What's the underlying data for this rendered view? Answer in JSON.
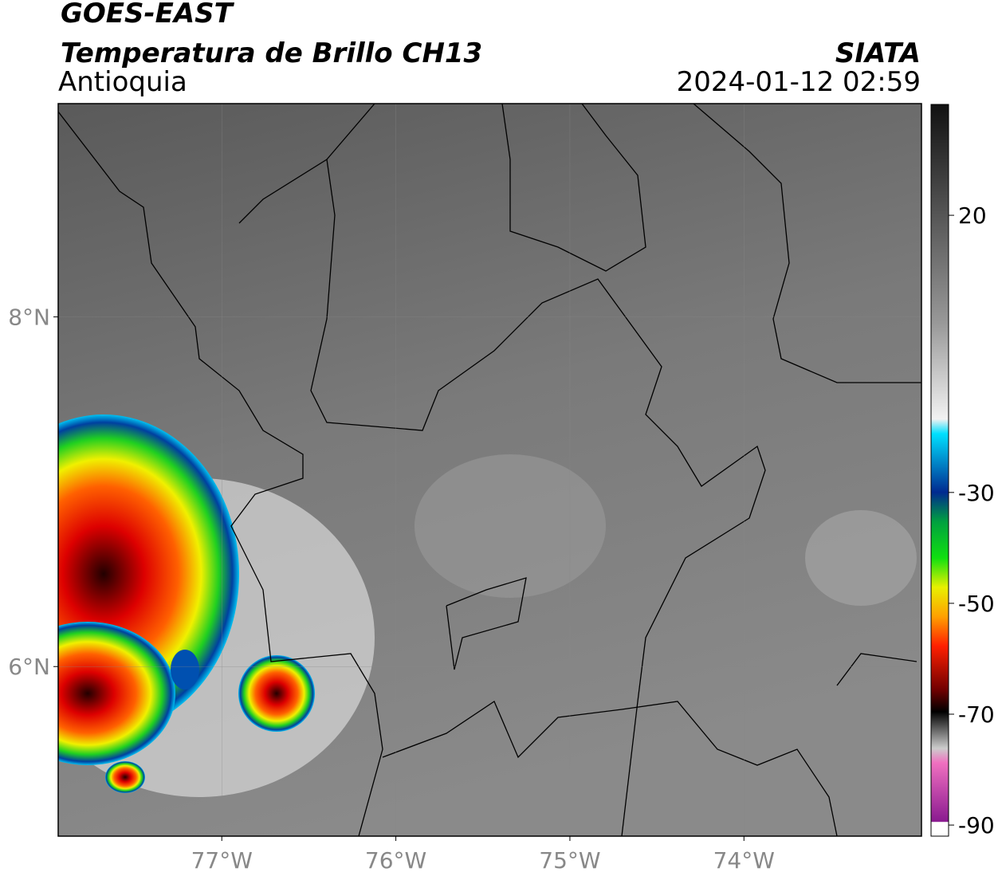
{
  "header": {
    "source": "GOES-EAST",
    "product": "Temperatura de Brillo CH13",
    "region": "Antioquia",
    "agency": "SIATA",
    "datetime": "2024-01-12 02:59"
  },
  "map": {
    "lon_lim": [
      -77.94,
      -72.98
    ],
    "lat_lim": [
      5.03,
      9.22
    ],
    "lon_ticks": [
      {
        "value": -77,
        "label": "77°W"
      },
      {
        "value": -76,
        "label": "76°W"
      },
      {
        "value": -75,
        "label": "75°W"
      },
      {
        "value": -74,
        "label": "74°W"
      }
    ],
    "lat_ticks": [
      {
        "value": 8,
        "label": "8°N"
      },
      {
        "value": 6,
        "label": "6°N"
      }
    ]
  },
  "colorbar": {
    "lim": [
      -92,
      40
    ],
    "ticks": [
      20,
      -30,
      -50,
      -70,
      -90
    ]
  }
}
